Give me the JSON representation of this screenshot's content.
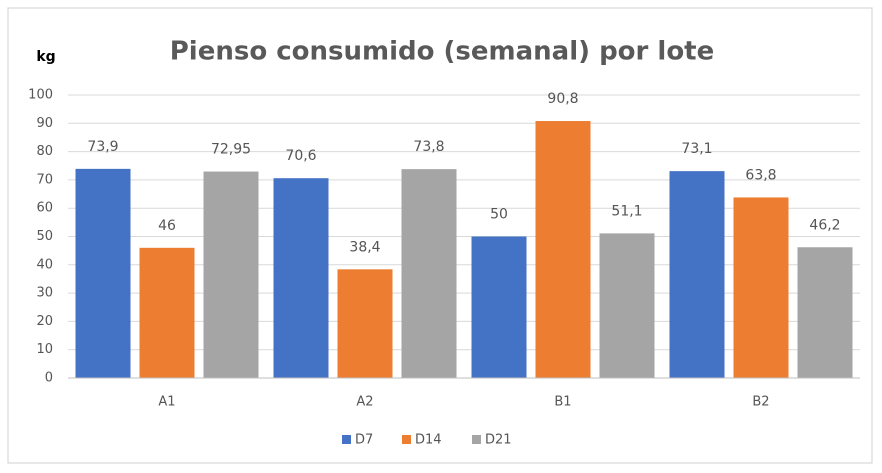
{
  "chart_data": {
    "type": "bar",
    "title": "Pienso consumido (semanal) por lote",
    "y_label": "kg",
    "categories": [
      "A1",
      "A2",
      "B1",
      "B2"
    ],
    "series": [
      {
        "name": "D7",
        "color": "#4472c4",
        "values": [
          73.9,
          70.6,
          50,
          73.1
        ],
        "value_labels": [
          "73,9",
          "70,6",
          "50",
          "73,1"
        ]
      },
      {
        "name": "D14",
        "color": "#ed7d31",
        "values": [
          46,
          38.4,
          90.8,
          63.8
        ],
        "value_labels": [
          "46",
          "38,4",
          "90,8",
          "63,8"
        ]
      },
      {
        "name": "D21",
        "color": "#a5a5a5",
        "values": [
          72.95,
          73.8,
          51.1,
          46.2
        ],
        "value_labels": [
          "72,95",
          "73,8",
          "51,1",
          "46,2"
        ]
      }
    ],
    "ylim": [
      0,
      100
    ],
    "yticks": [
      0,
      10,
      20,
      30,
      40,
      50,
      60,
      70,
      80,
      90,
      100
    ],
    "grid": true,
    "legend": "bottom"
  }
}
